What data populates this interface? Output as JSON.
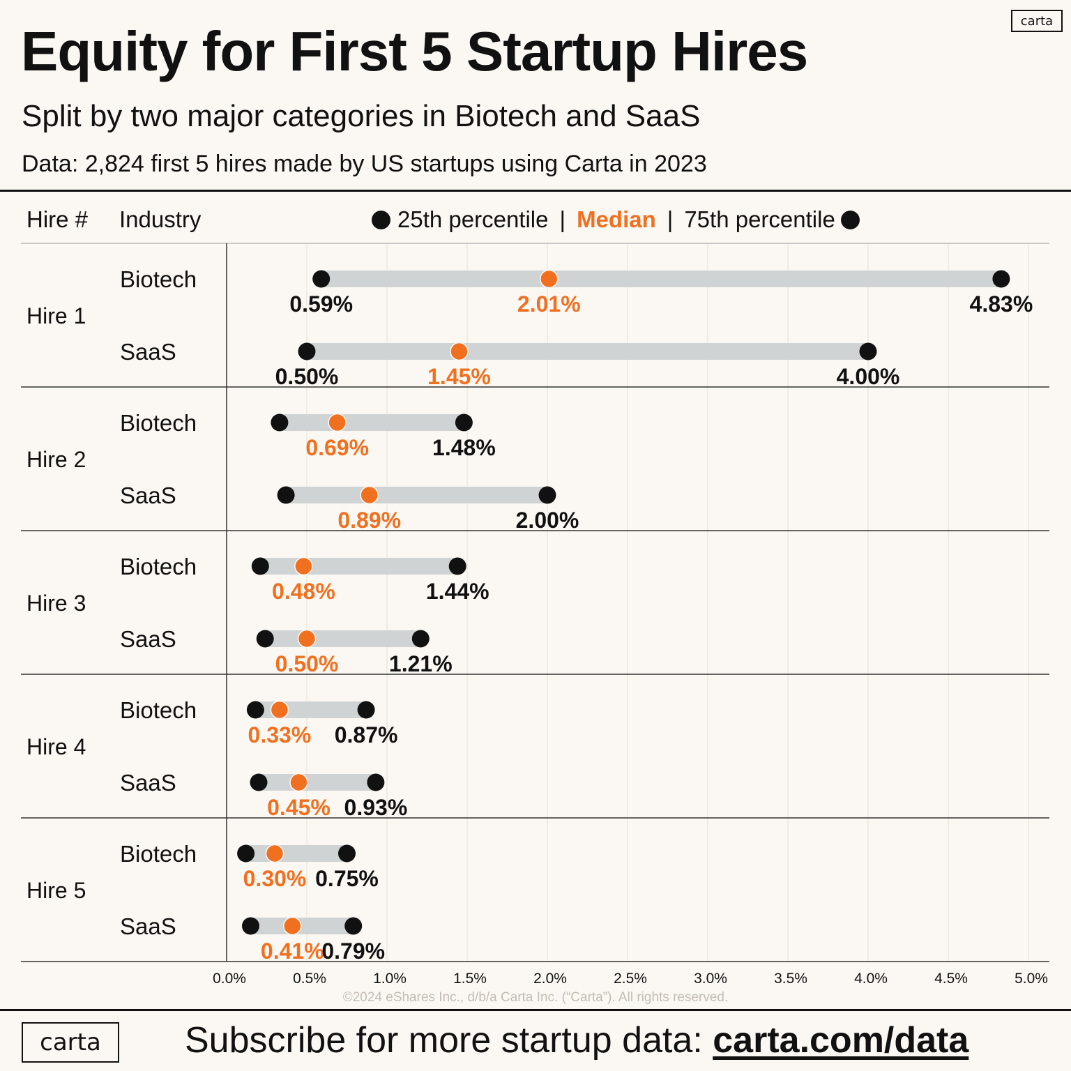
{
  "header": {
    "title": "Equity for First 5 Startup Hires",
    "subtitle": "Split by two major categories in Biotech and SaaS",
    "source": "Data: 2,824 first 5 hires made by US startups using Carta in 2023",
    "logo": "carta"
  },
  "legend": {
    "col_hire": "Hire #",
    "col_industry": "Industry",
    "p25": "25th percentile",
    "separator": "|",
    "median": "Median",
    "p75": "75th percentile"
  },
  "colors": {
    "median": "#f07020",
    "percentile": "#111111",
    "range_bar": "#cfd3d3",
    "grid": "#ece7df",
    "background": "#fbf8f3"
  },
  "chart_data": {
    "type": "dumbbell",
    "xlabel": "",
    "xlim": [
      0,
      5
    ],
    "x_ticks": [
      0,
      0.5,
      1.0,
      1.5,
      2.0,
      2.5,
      3.0,
      3.5,
      4.0,
      4.5,
      5.0
    ],
    "x_tick_labels": [
      "0.0%",
      "0.5%",
      "1.0%",
      "1.5%",
      "2.0%",
      "2.5%",
      "3.0%",
      "3.5%",
      "4.0%",
      "4.5%",
      "5.0%"
    ],
    "groups": [
      {
        "label": "Hire 1",
        "rows": [
          {
            "industry": "Biotech",
            "p25": 0.59,
            "median": 2.01,
            "p75": 4.83,
            "p25_label": "0.59%",
            "median_label": "2.01%",
            "p75_label": "4.83%"
          },
          {
            "industry": "SaaS",
            "p25": 0.5,
            "median": 1.45,
            "p75": 4.0,
            "p25_label": "0.50%",
            "median_label": "1.45%",
            "p75_label": "4.00%"
          }
        ]
      },
      {
        "label": "Hire 2",
        "rows": [
          {
            "industry": "Biotech",
            "p25": 0.33,
            "median": 0.69,
            "p75": 1.48,
            "p25_label": "",
            "median_label": "0.69%",
            "p75_label": "1.48%"
          },
          {
            "industry": "SaaS",
            "p25": 0.37,
            "median": 0.89,
            "p75": 2.0,
            "p25_label": "",
            "median_label": "0.89%",
            "p75_label": "2.00%"
          }
        ]
      },
      {
        "label": "Hire 3",
        "rows": [
          {
            "industry": "Biotech",
            "p25": 0.21,
            "median": 0.48,
            "p75": 1.44,
            "p25_label": "",
            "median_label": "0.48%",
            "p75_label": "1.44%"
          },
          {
            "industry": "SaaS",
            "p25": 0.24,
            "median": 0.5,
            "p75": 1.21,
            "p25_label": "",
            "median_label": "0.50%",
            "p75_label": "1.21%"
          }
        ]
      },
      {
        "label": "Hire 4",
        "rows": [
          {
            "industry": "Biotech",
            "p25": 0.18,
            "median": 0.33,
            "p75": 0.87,
            "p25_label": "",
            "median_label": "0.33%",
            "p75_label": "0.87%"
          },
          {
            "industry": "SaaS",
            "p25": 0.2,
            "median": 0.45,
            "p75": 0.93,
            "p25_label": "",
            "median_label": "0.45%",
            "p75_label": "0.93%"
          }
        ]
      },
      {
        "label": "Hire 5",
        "rows": [
          {
            "industry": "Biotech",
            "p25": 0.12,
            "median": 0.3,
            "p75": 0.75,
            "p25_label": "",
            "median_label": "0.30%",
            "p75_label": "0.75%"
          },
          {
            "industry": "SaaS",
            "p25": 0.15,
            "median": 0.41,
            "p75": 0.79,
            "p25_label": "",
            "median_label": "0.41%",
            "p75_label": "0.79%"
          }
        ]
      }
    ]
  },
  "footer": {
    "copyright": "©2024 eShares Inc., d/b/a Carta Inc. (“Carta”). All rights reserved.",
    "cta_text": "Subscribe for more startup data: ",
    "cta_link": "carta.com/data",
    "logo": "carta"
  }
}
